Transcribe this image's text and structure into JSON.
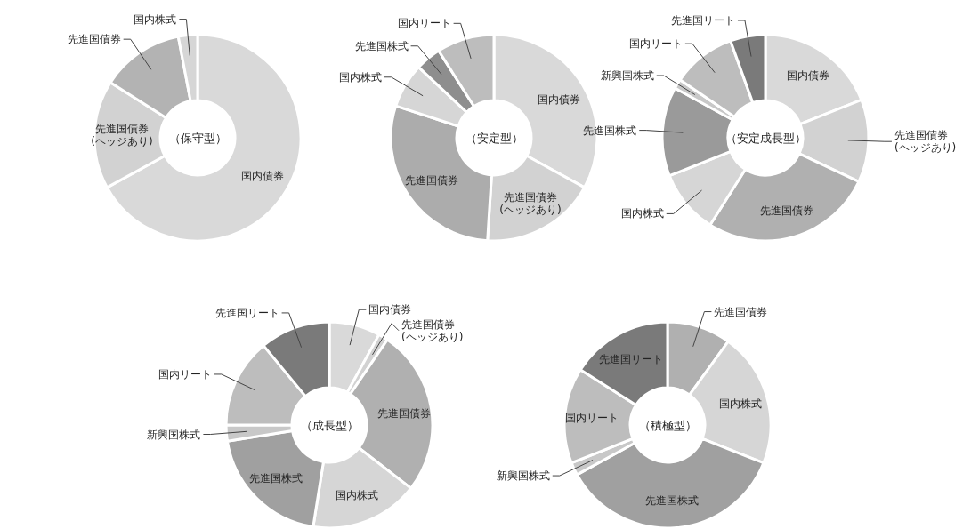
{
  "chart_data": [
    {
      "type": "donut",
      "title": "（保守型）",
      "categories": [
        "国内債券",
        "先進国債券\n(ヘッジあり)",
        "先進国債券",
        "国内株式"
      ],
      "values": [
        67,
        17,
        13,
        3
      ],
      "colors": [
        "#d9d9d9",
        "#d2d2d2",
        "#b3b3b3",
        "#d6d6d6"
      ]
    },
    {
      "type": "donut",
      "title": "（安定型）",
      "categories": [
        "国内債券",
        "先進国債券\n(ヘッジあり)",
        "先進国債券",
        "国内株式",
        "先進国株式",
        "国内リート"
      ],
      "values": [
        33,
        18,
        29,
        7,
        4,
        9
      ],
      "colors": [
        "#d9d9d9",
        "#d2d2d2",
        "#acacac",
        "#d6d6d6",
        "#8e8e8e",
        "#bdbdbd"
      ]
    },
    {
      "type": "donut",
      "title": "（安定成長型）",
      "categories": [
        "国内債券",
        "先進国債券\n(ヘッジあり)",
        "先進国債券",
        "国内株式",
        "先進国株式",
        "新興国株式",
        "国内リート",
        "先進国リート"
      ],
      "values": [
        19,
        13,
        27,
        10,
        14,
        1.5,
        10,
        5.5
      ],
      "colors": [
        "#d9d9d9",
        "#d2d2d2",
        "#b0b0b0",
        "#d6d6d6",
        "#9a9a9a",
        "#c8c8c8",
        "#bdbdbd",
        "#7a7a7a"
      ]
    },
    {
      "type": "donut",
      "title": "（成長型）",
      "categories": [
        "国内債券",
        "先進国債券\n(ヘッジあり)",
        "先進国債券",
        "国内株式",
        "先進国株式",
        "新興国株式",
        "国内リート",
        "先進国リート"
      ],
      "values": [
        8,
        1.5,
        26,
        17,
        20,
        2.5,
        14,
        11
      ],
      "colors": [
        "#d9d9d9",
        "#d2d2d2",
        "#b0b0b0",
        "#d6d6d6",
        "#a0a0a0",
        "#c8c8c8",
        "#bdbdbd",
        "#7a7a7a"
      ]
    },
    {
      "type": "donut",
      "title": "（積極型）",
      "categories": [
        "先進国債券",
        "国内株式",
        "先進国株式",
        "新興国株式",
        "国内リート",
        "先進国リート"
      ],
      "values": [
        10,
        21,
        36,
        2,
        15,
        16
      ],
      "colors": [
        "#b0b0b0",
        "#d6d6d6",
        "#a0a0a0",
        "#c8c8c8",
        "#bdbdbd",
        "#7a7a7a"
      ]
    }
  ]
}
